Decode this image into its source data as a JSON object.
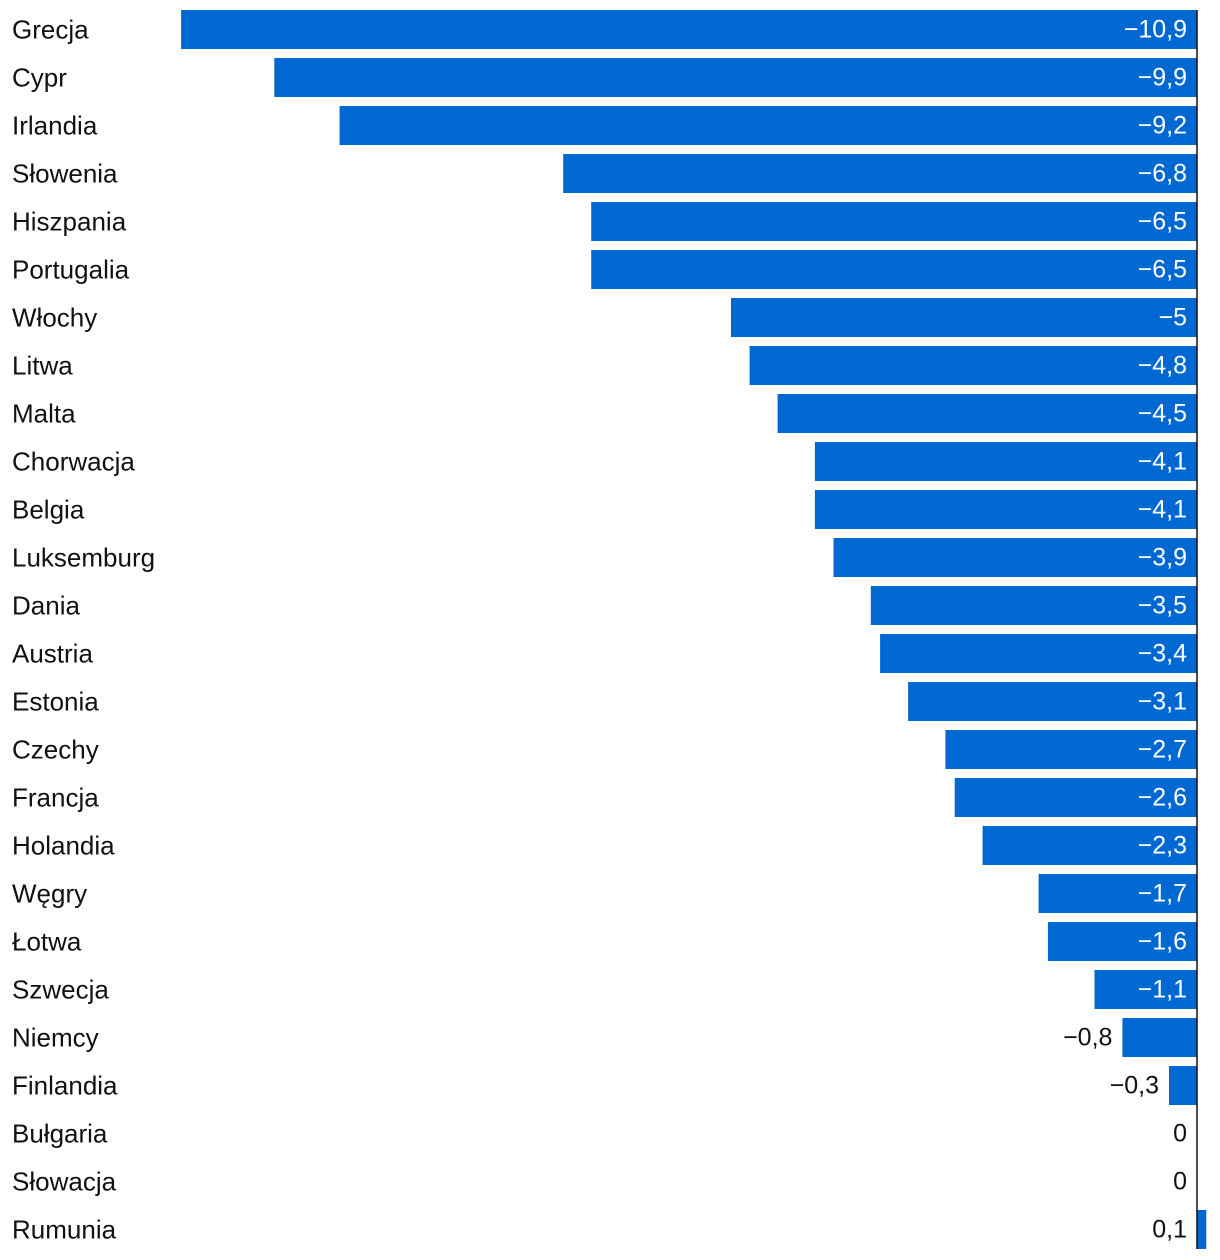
{
  "chart_data": {
    "type": "bar",
    "orientation": "horizontal",
    "categories": [
      "Grecja",
      "Cypr",
      "Irlandia",
      "Słowenia",
      "Hiszpania",
      "Portugalia",
      "Włochy",
      "Litwa",
      "Malta",
      "Chorwacja",
      "Belgia",
      "Luksemburg",
      "Dania",
      "Austria",
      "Estonia",
      "Czechy",
      "Francja",
      "Holandia",
      "Węgry",
      "Łotwa",
      "Szwecja",
      "Niemcy",
      "Finlandia",
      "Bułgaria",
      "Słowacja",
      "Rumunia"
    ],
    "values": [
      -10.9,
      -9.9,
      -9.2,
      -6.8,
      -6.5,
      -6.5,
      -5,
      -4.8,
      -4.5,
      -4.1,
      -4.1,
      -3.9,
      -3.5,
      -3.4,
      -3.1,
      -2.7,
      -2.6,
      -2.3,
      -1.7,
      -1.6,
      -1.1,
      -0.8,
      -0.3,
      0,
      0,
      0.1
    ],
    "value_labels": [
      "−10,9",
      "−9,9",
      "−9,2",
      "−6,8",
      "−6,5",
      "−6,5",
      "−5",
      "−4,8",
      "−4,5",
      "−4,1",
      "−4,1",
      "−3,9",
      "−3,5",
      "−3,4",
      "−3,1",
      "−2,7",
      "−2,6",
      "−2,3",
      "−1,7",
      "−1,6",
      "−1,1",
      "−0,8",
      "−0,3",
      "0",
      "0",
      "0,1"
    ],
    "xlim": [
      -10.9,
      0.1
    ],
    "title": "",
    "xlabel": "",
    "ylabel": "",
    "grid": false,
    "legend": "none"
  },
  "colors": {
    "bar": "#0068d2",
    "axis": "#111111",
    "label_text": "#111111",
    "label_inside": "#ffffff"
  }
}
